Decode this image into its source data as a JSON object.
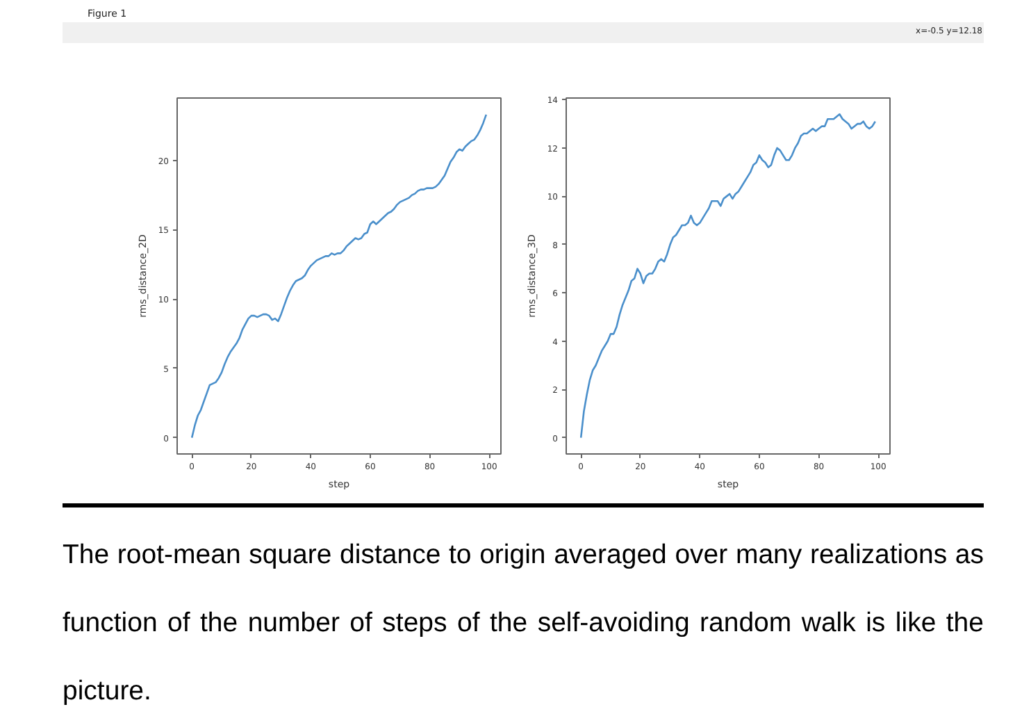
{
  "chart_data": [
    {
      "type": "line",
      "xlabel": "step",
      "ylabel": "rms_distance_2D",
      "annotations": [
        "Figure 1",
        "x=-0.5 y=12.18"
      ],
      "line_style": "solid",
      "xlim": [
        -4.95,
        103.95
      ],
      "ylim": [
        -1.17,
        24.5
      ],
      "xticks": [
        0,
        20,
        40,
        60,
        80,
        100
      ],
      "yticks": [
        0,
        5,
        10,
        15,
        20
      ],
      "x": [
        0,
        1,
        2,
        3,
        4,
        5,
        6,
        7,
        8,
        9,
        10,
        11,
        12,
        13,
        14,
        15,
        16,
        17,
        18,
        19,
        20,
        21,
        22,
        23,
        24,
        25,
        26,
        27,
        28,
        29,
        30,
        31,
        32,
        33,
        34,
        35,
        36,
        37,
        38,
        39,
        40,
        41,
        42,
        43,
        44,
        45,
        46,
        47,
        48,
        49,
        50,
        51,
        52,
        53,
        54,
        55,
        56,
        57,
        58,
        59,
        60,
        61,
        62,
        63,
        64,
        65,
        66,
        67,
        68,
        69,
        70,
        71,
        72,
        73,
        74,
        75,
        76,
        77,
        78,
        79,
        80,
        81,
        82,
        83,
        84,
        85,
        86,
        87,
        88,
        89,
        90,
        91,
        92,
        93,
        94,
        95,
        96,
        97,
        98,
        99
      ],
      "series": [
        {
          "color": "#4a8fcb",
          "values": [
            0,
            0.9,
            1.6,
            2.0,
            2.6,
            3.2,
            3.8,
            3.9,
            4.0,
            4.3,
            4.7,
            5.3,
            5.8,
            6.2,
            6.5,
            6.8,
            7.2,
            7.8,
            8.2,
            8.6,
            8.8,
            8.8,
            8.7,
            8.8,
            8.9,
            8.9,
            8.8,
            8.5,
            8.6,
            8.4,
            8.9,
            9.5,
            10.1,
            10.6,
            11.0,
            11.3,
            11.4,
            11.5,
            11.7,
            12.1,
            12.4,
            12.6,
            12.8,
            12.9,
            13.0,
            13.1,
            13.1,
            13.3,
            13.2,
            13.3,
            13.3,
            13.5,
            13.8,
            14.0,
            14.2,
            14.4,
            14.3,
            14.4,
            14.7,
            14.8,
            15.4,
            15.6,
            15.4,
            15.6,
            15.8,
            16.0,
            16.2,
            16.3,
            16.5,
            16.8,
            17.0,
            17.1,
            17.2,
            17.3,
            17.5,
            17.6,
            17.8,
            17.9,
            17.9,
            18.0,
            18.0,
            18.0,
            18.1,
            18.3,
            18.6,
            18.9,
            19.4,
            19.9,
            20.2,
            20.6,
            20.8,
            20.7,
            21.0,
            21.2,
            21.4,
            21.5,
            21.8,
            22.2,
            22.7,
            23.3
          ]
        }
      ]
    },
    {
      "type": "line",
      "xlabel": "step",
      "ylabel": "rms_distance_3D",
      "annotations": [
        "The root-mean square distance to origin averaged over many realizations as function of the number of steps of the self-avoiding random walk is like the picture."
      ],
      "line_style": "solid",
      "xlim": [
        -4.95,
        103.95
      ],
      "ylim": [
        -0.67,
        14.07
      ],
      "xticks": [
        0,
        20,
        40,
        60,
        80,
        100
      ],
      "yticks": [
        0,
        2,
        4,
        6,
        8,
        10,
        12,
        14
      ],
      "x": [
        0,
        1,
        2,
        3,
        4,
        5,
        6,
        7,
        8,
        9,
        10,
        11,
        12,
        13,
        14,
        15,
        16,
        17,
        18,
        19,
        20,
        21,
        22,
        23,
        24,
        25,
        26,
        27,
        28,
        29,
        30,
        31,
        32,
        33,
        34,
        35,
        36,
        37,
        38,
        39,
        40,
        41,
        42,
        43,
        44,
        45,
        46,
        47,
        48,
        49,
        50,
        51,
        52,
        53,
        54,
        55,
        56,
        57,
        58,
        59,
        60,
        61,
        62,
        63,
        64,
        65,
        66,
        67,
        68,
        69,
        70,
        71,
        72,
        73,
        74,
        75,
        76,
        77,
        78,
        79,
        80,
        81,
        82,
        83,
        84,
        85,
        86,
        87,
        88,
        89,
        90,
        91,
        92,
        93,
        94,
        95,
        96,
        97,
        98,
        99
      ],
      "series": [
        {
          "color": "#4a8fcb",
          "values": [
            0,
            1.1,
            1.8,
            2.4,
            2.8,
            3.0,
            3.3,
            3.6,
            3.8,
            4.0,
            4.3,
            4.3,
            4.6,
            5.1,
            5.5,
            5.8,
            6.1,
            6.5,
            6.6,
            7.0,
            6.8,
            6.4,
            6.7,
            6.8,
            6.8,
            7.0,
            7.3,
            7.4,
            7.3,
            7.6,
            8.0,
            8.3,
            8.4,
            8.6,
            8.8,
            8.8,
            8.9,
            9.2,
            8.9,
            8.8,
            8.9,
            9.1,
            9.3,
            9.5,
            9.8,
            9.8,
            9.8,
            9.6,
            9.9,
            10.0,
            10.1,
            9.9,
            10.1,
            10.2,
            10.4,
            10.6,
            10.8,
            11.0,
            11.3,
            11.4,
            11.7,
            11.5,
            11.4,
            11.2,
            11.3,
            11.7,
            12.0,
            11.9,
            11.7,
            11.5,
            11.5,
            11.7,
            12.0,
            12.2,
            12.5,
            12.6,
            12.6,
            12.7,
            12.8,
            12.7,
            12.8,
            12.9,
            12.9,
            13.2,
            13.2,
            13.2,
            13.3,
            13.4,
            13.2,
            13.1,
            13.0,
            12.8,
            12.9,
            13.0,
            13.0,
            13.1,
            12.9,
            12.8,
            12.9,
            13.1
          ]
        }
      ]
    }
  ]
}
